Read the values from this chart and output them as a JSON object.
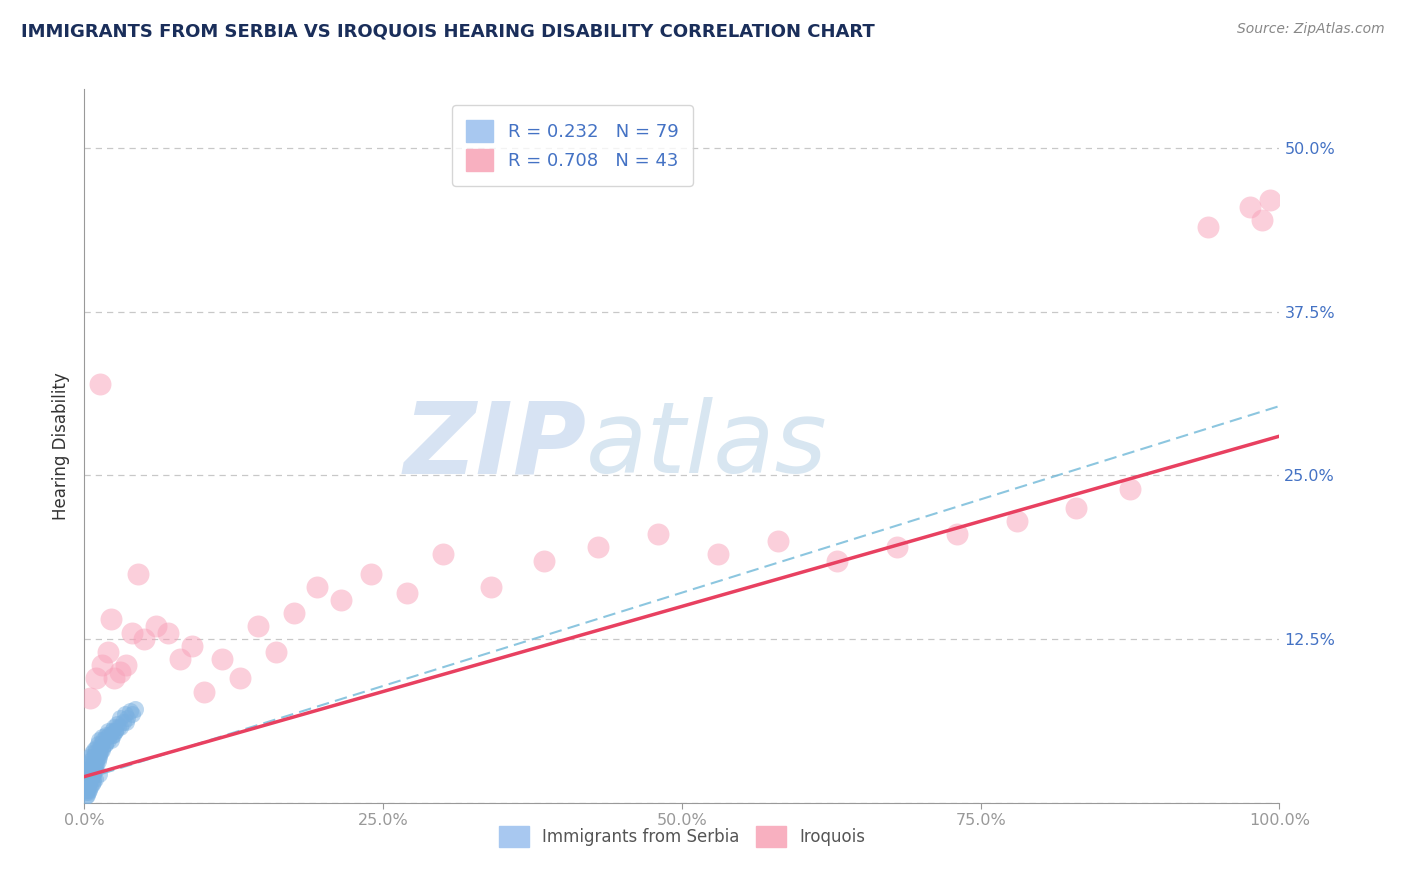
{
  "title": "IMMIGRANTS FROM SERBIA VS IROQUOIS HEARING DISABILITY CORRELATION CHART",
  "source_text": "Source: ZipAtlas.com",
  "ylabel": "Hearing Disability",
  "watermark_zip": "ZIP",
  "watermark_atlas": "atlas",
  "xlim": [
    0.0,
    1.0
  ],
  "ylim": [
    0.0,
    0.545
  ],
  "yticks": [
    0.0,
    0.125,
    0.25,
    0.375,
    0.5
  ],
  "ytick_labels": [
    "",
    "12.5%",
    "25.0%",
    "37.5%",
    "50.0%"
  ],
  "xtick_labels": [
    "0.0%",
    "25.0%",
    "50.0%",
    "75.0%",
    "100.0%"
  ],
  "xticks": [
    0.0,
    0.25,
    0.5,
    0.75,
    1.0
  ],
  "legend_entries": [
    {
      "label": "R = 0.232   N = 79",
      "color": "#a8c8f0"
    },
    {
      "label": "R = 0.708   N = 43",
      "color": "#f8b0c0"
    }
  ],
  "serbia_color": "#7ab0e0",
  "iroquois_color": "#f8a0b8",
  "background_color": "#ffffff",
  "grid_color": "#c8c8c8",
  "title_color": "#1a2e5a",
  "tick_color": "#4472c4",
  "serbia_line_color": "#70b8d8",
  "iroquois_line_color": "#e84060",
  "serbia_points_x": [
    0.001,
    0.002,
    0.002,
    0.003,
    0.003,
    0.003,
    0.004,
    0.004,
    0.005,
    0.005,
    0.005,
    0.006,
    0.006,
    0.007,
    0.007,
    0.007,
    0.008,
    0.008,
    0.009,
    0.009,
    0.01,
    0.01,
    0.011,
    0.011,
    0.012,
    0.012,
    0.013,
    0.014,
    0.015,
    0.015,
    0.016,
    0.017,
    0.018,
    0.019,
    0.02,
    0.021,
    0.022,
    0.023,
    0.024,
    0.025,
    0.026,
    0.027,
    0.028,
    0.03,
    0.032,
    0.034,
    0.036,
    0.038,
    0.04,
    0.042,
    0.001,
    0.002,
    0.003,
    0.004,
    0.005,
    0.006,
    0.007,
    0.008,
    0.009,
    0.01,
    0.011,
    0.012,
    0.013,
    0.015,
    0.017,
    0.02,
    0.023,
    0.026,
    0.03,
    0.035,
    0.001,
    0.002,
    0.003,
    0.004,
    0.005,
    0.006,
    0.007,
    0.009,
    0.012
  ],
  "serbia_points_y": [
    0.02,
    0.025,
    0.018,
    0.03,
    0.022,
    0.015,
    0.028,
    0.035,
    0.032,
    0.025,
    0.018,
    0.038,
    0.028,
    0.035,
    0.022,
    0.018,
    0.04,
    0.03,
    0.038,
    0.025,
    0.042,
    0.032,
    0.045,
    0.035,
    0.048,
    0.038,
    0.042,
    0.045,
    0.05,
    0.04,
    0.048,
    0.045,
    0.052,
    0.05,
    0.055,
    0.052,
    0.048,
    0.055,
    0.052,
    0.058,
    0.055,
    0.06,
    0.058,
    0.065,
    0.062,
    0.068,
    0.065,
    0.07,
    0.068,
    0.072,
    0.008,
    0.01,
    0.012,
    0.015,
    0.018,
    0.02,
    0.022,
    0.025,
    0.028,
    0.03,
    0.032,
    0.035,
    0.038,
    0.042,
    0.045,
    0.048,
    0.052,
    0.055,
    0.058,
    0.062,
    0.005,
    0.006,
    0.008,
    0.01,
    0.012,
    0.014,
    0.016,
    0.018,
    0.022
  ],
  "iroquois_points_x": [
    0.005,
    0.01,
    0.015,
    0.02,
    0.025,
    0.03,
    0.035,
    0.04,
    0.05,
    0.06,
    0.07,
    0.08,
    0.09,
    0.1,
    0.115,
    0.13,
    0.145,
    0.16,
    0.175,
    0.195,
    0.215,
    0.24,
    0.27,
    0.3,
    0.34,
    0.385,
    0.43,
    0.48,
    0.53,
    0.58,
    0.63,
    0.68,
    0.73,
    0.78,
    0.83,
    0.875,
    0.94,
    0.975,
    0.985,
    0.992,
    0.013,
    0.022,
    0.045
  ],
  "iroquois_points_y": [
    0.08,
    0.095,
    0.105,
    0.115,
    0.095,
    0.1,
    0.105,
    0.13,
    0.125,
    0.135,
    0.13,
    0.11,
    0.12,
    0.085,
    0.11,
    0.095,
    0.135,
    0.115,
    0.145,
    0.165,
    0.155,
    0.175,
    0.16,
    0.19,
    0.165,
    0.185,
    0.195,
    0.205,
    0.19,
    0.2,
    0.185,
    0.195,
    0.205,
    0.215,
    0.225,
    0.24,
    0.44,
    0.455,
    0.445,
    0.46,
    0.32,
    0.14,
    0.175
  ]
}
